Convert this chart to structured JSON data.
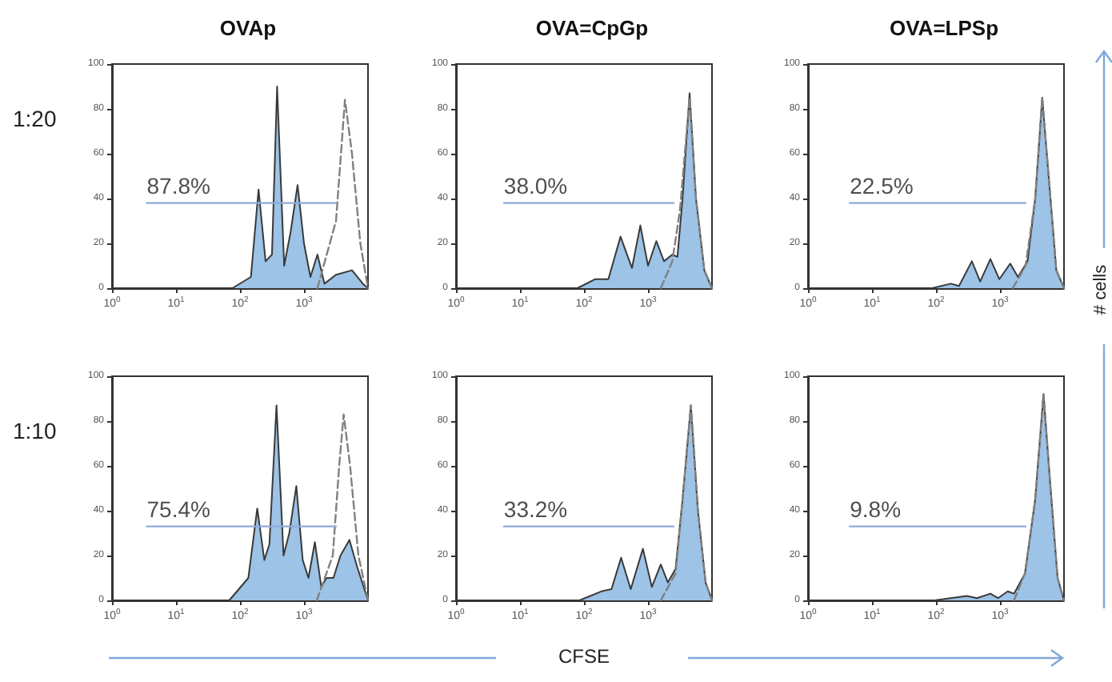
{
  "chart_data": [
    {
      "type": "area",
      "title": "OVAp",
      "ylabel": "1:20",
      "log": "x",
      "xlim": [
        1,
        10000
      ],
      "ylim": [
        0,
        100
      ],
      "xticks": [
        {
          "value": 1,
          "label": "10$^{0}$"
        },
        {
          "value": 10,
          "label": "10$^{1}$"
        },
        {
          "value": 100,
          "label": "10$^{2}$"
        },
        {
          "value": 1000,
          "label": "10$^{3}$"
        }
      ],
      "yticks": [
        0,
        20,
        40,
        60,
        80,
        100
      ],
      "series": [
        {
          "color": "#9dc3e6",
          "x": [
            76,
            148,
            195,
            251,
            316,
            380,
            490,
            617,
            794,
            1000,
            1259,
            1622,
            2089,
            3162,
            5623,
            8318,
            10000
          ],
          "values": [
            0,
            5,
            44,
            12,
            15,
            90,
            10,
            25,
            46,
            20,
            5,
            15,
            2,
            6,
            8,
            2,
            0
          ]
        },
        {
          "type": "line",
          "color": "#808080",
          "line_style": "dashed",
          "x": [
            1622,
            3162,
            4365,
            5623,
            7586,
            10000
          ],
          "values": [
            0,
            30,
            84,
            60,
            20,
            0
          ]
        },
        {
          "type": "line",
          "color": "#8eaadb",
          "x": [
            3.5,
            3162
          ],
          "values": [
            38,
            38
          ]
        }
      ],
      "annotations": [
        {
          "text": "87.8%",
          "x": 3.5,
          "y": 38
        }
      ]
    },
    {
      "type": "area",
      "title": "OVA=CpGp",
      "log": "x",
      "xlim": [
        1,
        10000
      ],
      "ylim": [
        0,
        100
      ],
      "xticks": [
        {
          "value": 1,
          "label": "10$^{0}$"
        },
        {
          "value": 10,
          "label": "10$^{1}$"
        },
        {
          "value": 100,
          "label": "10$^{2}$"
        },
        {
          "value": 1000,
          "label": "10$^{3}$"
        }
      ],
      "yticks": [
        0,
        20,
        40,
        60,
        80,
        100
      ],
      "series": [
        {
          "color": "#9dc3e6",
          "x": [
            79,
            148,
            240,
            372,
            562,
            759,
            1000,
            1349,
            1778,
            2399,
            2884,
            3467,
            4467,
            5623,
            7586,
            10000
          ],
          "values": [
            0,
            4,
            4,
            23,
            9,
            28,
            10,
            21,
            12,
            15,
            14,
            40,
            87,
            40,
            8,
            0
          ]
        },
        {
          "type": "line",
          "color": "#808080",
          "line_style": "dashed",
          "x": [
            1585,
            2399,
            3162,
            4467,
            5623,
            7586,
            10000
          ],
          "values": [
            0,
            12,
            35,
            85,
            40,
            8,
            0
          ]
        },
        {
          "type": "line",
          "color": "#8eaadb",
          "x": [
            5.6,
            2512
          ],
          "values": [
            38,
            38
          ]
        }
      ],
      "annotations": [
        {
          "text": "38.0%",
          "x": 5.6,
          "y": 38
        }
      ]
    },
    {
      "type": "area",
      "title": "OVA=LPSp",
      "y2label": "# cells",
      "log": "x",
      "xlim": [
        1,
        10000
      ],
      "ylim": [
        0,
        100
      ],
      "xticks": [
        {
          "value": 1,
          "label": "10$^{0}$"
        },
        {
          "value": 10,
          "label": "10$^{1}$"
        },
        {
          "value": 100,
          "label": "10$^{2}$"
        },
        {
          "value": 1000,
          "label": "10$^{3}$"
        }
      ],
      "yticks": [
        0,
        20,
        40,
        60,
        80,
        100
      ],
      "series": [
        {
          "color": "#9dc3e6",
          "x": [
            87,
            170,
            229,
            363,
            490,
            708,
            977,
            1445,
            1905,
            2692,
            3548,
            4571,
            5754,
            7586,
            10000
          ],
          "values": [
            0,
            2,
            1,
            12,
            3,
            13,
            4,
            11,
            5,
            12,
            40,
            85,
            50,
            8,
            0
          ]
        },
        {
          "type": "line",
          "color": "#808080",
          "line_style": "dashed",
          "x": [
            1585,
            2512,
            3548,
            4571,
            5754,
            7586,
            10000
          ],
          "values": [
            0,
            10,
            40,
            85,
            50,
            8,
            0
          ]
        },
        {
          "type": "line",
          "color": "#8eaadb",
          "x": [
            4.5,
            2512
          ],
          "values": [
            38,
            38
          ]
        }
      ],
      "annotations": [
        {
          "text": "22.5%",
          "x": 4.5,
          "y": 38
        }
      ]
    },
    {
      "type": "area",
      "ylabel": "1:10",
      "log": "x",
      "xlim": [
        1,
        10000
      ],
      "ylim": [
        0,
        100
      ],
      "xticks": [
        {
          "value": 1,
          "label": "10$^{0}$"
        },
        {
          "value": 10,
          "label": "10$^{1}$"
        },
        {
          "value": 100,
          "label": "10$^{2}$"
        },
        {
          "value": 1000,
          "label": "10$^{3}$"
        }
      ],
      "yticks": [
        0,
        20,
        40,
        60,
        80,
        100
      ],
      "series": [
        {
          "color": "#9dc3e6",
          "x": [
            68,
            135,
            186,
            240,
            288,
            372,
            479,
            589,
            759,
            955,
            1175,
            1479,
            1862,
            2239,
            2884,
            3715,
            5129,
            6761,
            10000
          ],
          "values": [
            0,
            10,
            41,
            18,
            25,
            87,
            20,
            30,
            51,
            18,
            10,
            26,
            6,
            10,
            10,
            20,
            27,
            15,
            0
          ]
        },
        {
          "type": "line",
          "color": "#808080",
          "line_style": "dashed",
          "x": [
            1585,
            2818,
            3548,
            4169,
            5248,
            7079,
            10000
          ],
          "values": [
            0,
            20,
            60,
            83,
            60,
            20,
            0
          ]
        },
        {
          "type": "line",
          "color": "#8eaadb",
          "x": [
            3.5,
            3162
          ],
          "values": [
            33,
            33
          ]
        }
      ],
      "annotations": [
        {
          "text": "75.4%",
          "x": 3.5,
          "y": 33
        }
      ]
    },
    {
      "type": "area",
      "xlabel": "CFSE",
      "log": "x",
      "xlim": [
        1,
        10000
      ],
      "ylim": [
        0,
        100
      ],
      "xticks": [
        {
          "value": 1,
          "label": "10$^{0}$"
        },
        {
          "value": 10,
          "label": "10$^{1}$"
        },
        {
          "value": 100,
          "label": "10$^{2}$"
        },
        {
          "value": 1000,
          "label": "10$^{3}$"
        }
      ],
      "yticks": [
        0,
        20,
        40,
        60,
        80,
        100
      ],
      "series": [
        {
          "color": "#9dc3e6",
          "x": [
            85,
            186,
            269,
            380,
            537,
            832,
            1148,
            1585,
            2042,
            2692,
            3467,
            4677,
            6026,
            7943,
            10000
          ],
          "values": [
            0,
            4,
            5,
            19,
            5,
            23,
            6,
            16,
            8,
            14,
            45,
            87,
            40,
            8,
            0
          ]
        },
        {
          "type": "line",
          "color": "#808080",
          "line_style": "dashed",
          "x": [
            1585,
            2692,
            3467,
            4677,
            6026,
            7943,
            10000
          ],
          "values": [
            0,
            12,
            45,
            87,
            40,
            8,
            0
          ]
        },
        {
          "type": "line",
          "color": "#8eaadb",
          "x": [
            5.6,
            2512
          ],
          "values": [
            33,
            33
          ]
        }
      ],
      "annotations": [
        {
          "text": "33.2%",
          "x": 5.6,
          "y": 33
        }
      ]
    },
    {
      "type": "area",
      "log": "x",
      "xlim": [
        1,
        10000
      ],
      "ylim": [
        0,
        100
      ],
      "xticks": [
        {
          "value": 1,
          "label": "10$^{0}$"
        },
        {
          "value": 10,
          "label": "10$^{1}$"
        },
        {
          "value": 100,
          "label": "10$^{2}$"
        },
        {
          "value": 1000,
          "label": "10$^{3}$"
        }
      ],
      "yticks": [
        0,
        20,
        40,
        60,
        80,
        100
      ],
      "series": [
        {
          "color": "#9dc3e6",
          "x": [
            95,
            302,
            437,
            708,
            933,
            1318,
            1660,
            2455,
            3548,
            4786,
            6166,
            7943,
            10000
          ],
          "values": [
            0,
            2,
            1,
            3,
            1,
            4,
            3,
            12,
            45,
            92,
            50,
            10,
            0
          ]
        },
        {
          "type": "line",
          "color": "#808080",
          "line_style": "dashed",
          "x": [
            1660,
            2455,
            3548,
            4786,
            6166,
            7943,
            10000
          ],
          "values": [
            0,
            12,
            45,
            92,
            50,
            10,
            0
          ]
        },
        {
          "type": "line",
          "color": "#8eaadb",
          "x": [
            4.5,
            2512
          ],
          "values": [
            33,
            33
          ]
        }
      ],
      "annotations": [
        {
          "text": "9.8%",
          "x": 4.5,
          "y": 33
        }
      ]
    }
  ]
}
